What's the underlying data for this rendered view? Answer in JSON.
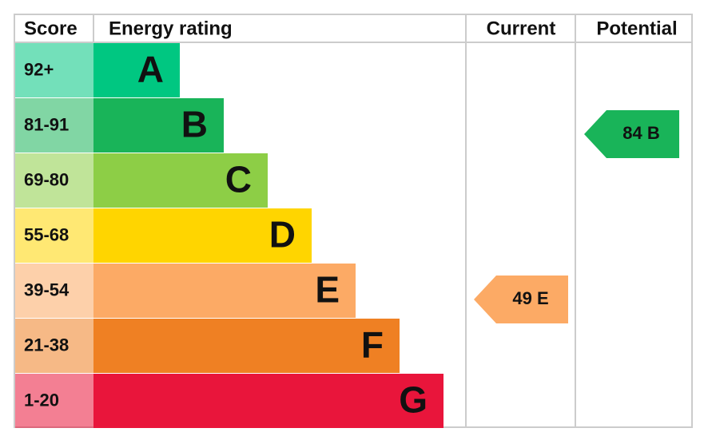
{
  "header": {
    "score": "Score",
    "energy_rating": "Energy rating",
    "current": "Current",
    "potential": "Potential"
  },
  "bands": [
    {
      "score": "92+",
      "letter": "A",
      "color": "#00c781"
    },
    {
      "score": "81-91",
      "letter": "B",
      "color": "#19b459"
    },
    {
      "score": "69-80",
      "letter": "C",
      "color": "#8dce46"
    },
    {
      "score": "55-68",
      "letter": "D",
      "color": "#ffd500"
    },
    {
      "score": "39-54",
      "letter": "E",
      "color": "#fcaa65"
    },
    {
      "score": "21-38",
      "letter": "F",
      "color": "#ef8023"
    },
    {
      "score": "1-20",
      "letter": "G",
      "color": "#e9153b"
    }
  ],
  "current": {
    "value": 49,
    "label": "49 E",
    "color": "#fcaa65"
  },
  "potential": {
    "value": 84,
    "label": "84 B",
    "color": "#19b459"
  }
}
